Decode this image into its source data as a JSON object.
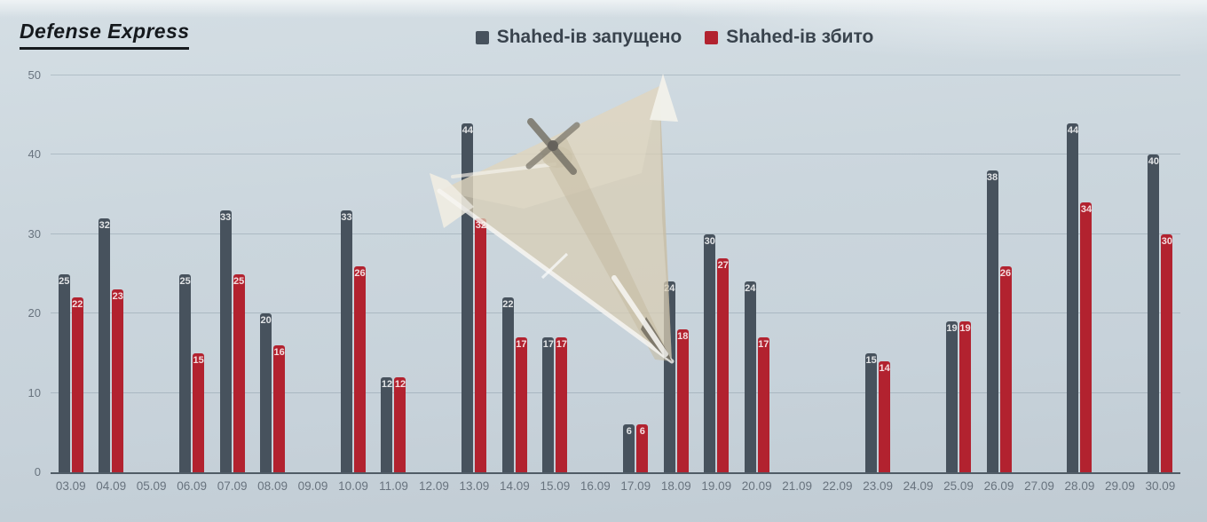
{
  "logo": {
    "text": "Defense Express"
  },
  "legend": {
    "items": [
      {
        "label": "Shahed-ів запущено",
        "color": "#47525d"
      },
      {
        "label": "Shahed-ів збито",
        "color": "#b2222f"
      }
    ]
  },
  "background": {
    "icon": "shahed-drone-image",
    "sky_color": "#cbd6dd",
    "axis_color": "#505c66",
    "tick_color": "#68737e"
  },
  "chart_data": {
    "type": "bar",
    "title": "",
    "xlabel": "",
    "ylabel": "",
    "categories": [
      "03.09",
      "04.09",
      "05.09",
      "06.09",
      "07.09",
      "08.09",
      "09.09",
      "10.09",
      "11.09",
      "12.09",
      "13.09",
      "14.09",
      "15.09",
      "16.09",
      "17.09",
      "18.09",
      "19.09",
      "20.09",
      "21.09",
      "22.09",
      "23.09",
      "24.09",
      "25.09",
      "26.09",
      "27.09",
      "28.09",
      "29.09",
      "30.09"
    ],
    "series": [
      {
        "name": "Shahed-ів запущено",
        "color": "#47525d",
        "values": [
          25,
          32,
          null,
          25,
          33,
          20,
          null,
          33,
          12,
          null,
          44,
          22,
          17,
          null,
          6,
          24,
          30,
          24,
          null,
          null,
          15,
          null,
          19,
          38,
          null,
          44,
          null,
          40
        ]
      },
      {
        "name": "Shahed-ів збито",
        "color": "#b2222f",
        "values": [
          22,
          23,
          null,
          15,
          25,
          16,
          null,
          26,
          12,
          null,
          32,
          17,
          17,
          null,
          6,
          18,
          27,
          17,
          null,
          null,
          14,
          null,
          19,
          26,
          null,
          34,
          null,
          30
        ]
      }
    ],
    "ylim": [
      0,
      50
    ],
    "yticks": [
      0,
      10,
      20,
      30,
      40,
      50
    ],
    "grid": true,
    "legend_position": "top-center",
    "value_labels": true
  }
}
